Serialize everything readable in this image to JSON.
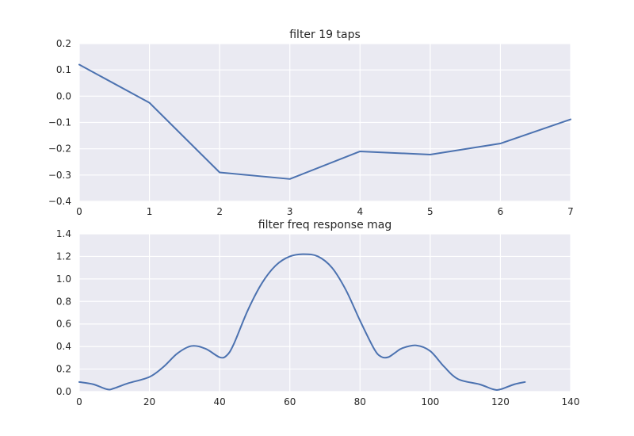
{
  "chart_data": [
    {
      "type": "line",
      "title": "filter 19 taps",
      "xlabel": "",
      "ylabel": "",
      "xlim": [
        0,
        7
      ],
      "ylim": [
        -0.4,
        0.2
      ],
      "xticks": [
        0,
        1,
        2,
        3,
        4,
        5,
        6,
        7
      ],
      "yticks": [
        -0.4,
        -0.3,
        -0.2,
        -0.1,
        0.0,
        0.1,
        0.2
      ],
      "ytick_labels": [
        "−0.4",
        "−0.3",
        "−0.2",
        "−0.1",
        "0.0",
        "0.1",
        "0.2"
      ],
      "grid": true,
      "series": [
        {
          "x": [
            0,
            1,
            2,
            3,
            4,
            5,
            6,
            7
          ],
          "y": [
            0.12,
            -0.025,
            -0.29,
            -0.315,
            -0.21,
            -0.222,
            -0.18,
            -0.088
          ],
          "color": "#4C72B0"
        }
      ]
    },
    {
      "type": "line",
      "title": "filter freq response mag",
      "xlabel": "",
      "ylabel": "",
      "xlim": [
        0,
        140
      ],
      "ylim": [
        0,
        1.4
      ],
      "xticks": [
        0,
        20,
        40,
        60,
        80,
        100,
        120,
        140
      ],
      "yticks": [
        0.0,
        0.2,
        0.4,
        0.6,
        0.8,
        1.0,
        1.2,
        1.4
      ],
      "ytick_labels": [
        "0.0",
        "0.2",
        "0.4",
        "0.6",
        "0.8",
        "1.0",
        "1.2",
        "1.4"
      ],
      "grid": true,
      "series": [
        {
          "x": [
            0,
            4,
            8,
            10,
            14,
            20,
            24,
            28,
            32,
            36,
            40,
            42,
            44,
            48,
            52,
            56,
            60,
            64,
            68,
            72,
            76,
            80,
            84,
            86,
            88,
            90,
            92,
            96,
            100,
            104,
            108,
            114,
            118,
            120,
            124,
            127
          ],
          "y": [
            0.085,
            0.065,
            0.02,
            0.03,
            0.075,
            0.13,
            0.22,
            0.34,
            0.405,
            0.38,
            0.305,
            0.32,
            0.42,
            0.72,
            0.96,
            1.12,
            1.2,
            1.22,
            1.2,
            1.1,
            0.9,
            0.63,
            0.38,
            0.31,
            0.305,
            0.345,
            0.385,
            0.41,
            0.36,
            0.22,
            0.11,
            0.065,
            0.02,
            0.02,
            0.065,
            0.085
          ],
          "color": "#4C72B0"
        }
      ]
    }
  ]
}
